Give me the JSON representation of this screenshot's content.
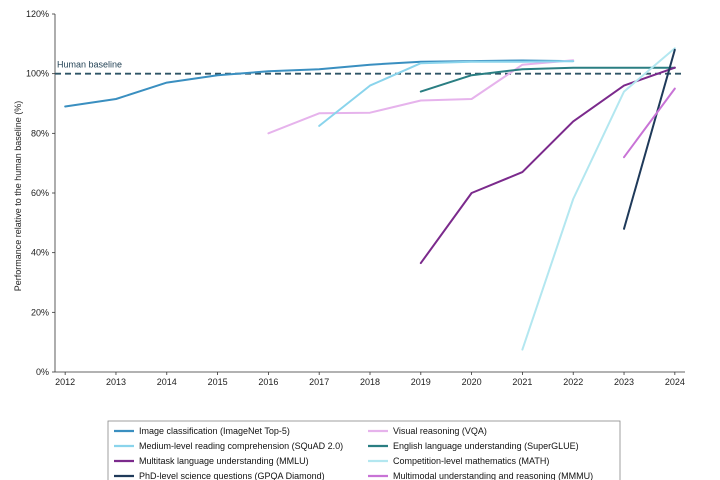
{
  "chart_data": {
    "type": "line",
    "ylabel": "Performance relative to the human baseline (%)",
    "ylim": [
      0,
      120
    ],
    "yticks": [
      "0%",
      "20%",
      "40%",
      "60%",
      "80%",
      "100%",
      "120%"
    ],
    "x_ticks": [
      "2012",
      "2013",
      "2014",
      "2015",
      "2016",
      "2017",
      "2018",
      "2019",
      "2020",
      "2021",
      "2022",
      "2023",
      "2024"
    ],
    "xlim": [
      2011.8,
      2024.2
    ],
    "baseline": {
      "label": "Human baseline",
      "value": 100
    },
    "grid": false,
    "legend_position": "bottom",
    "series": [
      {
        "name": "Image classification (ImageNet Top-5)",
        "color": "#3a8fc0",
        "x": [
          2012,
          2013,
          2014,
          2015,
          2016,
          2017,
          2018,
          2019,
          2020,
          2021,
          2022
        ],
        "y": [
          89,
          91.5,
          97,
          99.5,
          100.8,
          101.5,
          103,
          104,
          104.2,
          104.4,
          104.2
        ]
      },
      {
        "name": "Visual reasoning (VQA)",
        "color": "#e6b3ec",
        "x": [
          2016,
          2017,
          2018,
          2019,
          2020,
          2021,
          2022
        ],
        "y": [
          80,
          86.7,
          86.9,
          91,
          91.5,
          103,
          104.5
        ]
      },
      {
        "name": "Medium-level reading comprehension (SQuAD 2.0)",
        "color": "#8ad4ec",
        "x": [
          2017,
          2018,
          2019,
          2020,
          2021,
          2022
        ],
        "y": [
          82.5,
          96,
          103.5,
          104,
          104,
          104.2
        ]
      },
      {
        "name": "English language understanding (SuperGLUE)",
        "color": "#2a7e82",
        "x": [
          2019,
          2020,
          2021,
          2022,
          2023,
          2024
        ],
        "y": [
          94,
          99.5,
          101.5,
          102,
          102,
          102
        ]
      },
      {
        "name": "Multitask language understanding (MMLU)",
        "color": "#7b2a8c",
        "x": [
          2019,
          2020,
          2021,
          2022,
          2023,
          2024
        ],
        "y": [
          36.5,
          60,
          67,
          84,
          96,
          102
        ]
      },
      {
        "name": "Competition-level mathematics (MATH)",
        "color": "#b3e7f0",
        "x": [
          2021,
          2022,
          2023,
          2024
        ],
        "y": [
          7.5,
          58,
          94,
          108.5
        ]
      },
      {
        "name": "PhD-level science questions (GPQA Diamond)",
        "color": "#1f3a5a",
        "x": [
          2023,
          2024
        ],
        "y": [
          48,
          108
        ]
      },
      {
        "name": "Multimodal understanding and reasoning (MMMU)",
        "color": "#c873d6",
        "x": [
          2023,
          2024
        ],
        "y": [
          72,
          95
        ]
      }
    ]
  }
}
